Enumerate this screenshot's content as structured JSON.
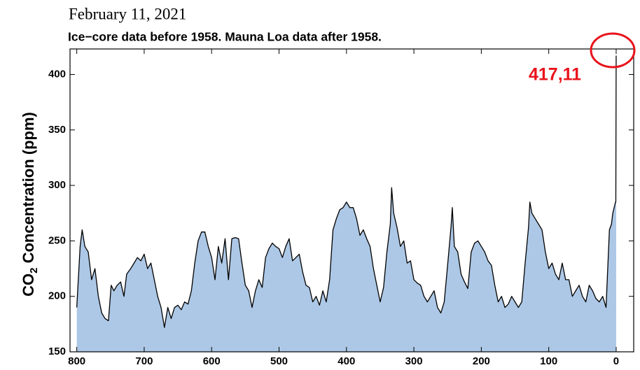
{
  "chart_data": {
    "type": "area",
    "title": "February 11, 2021",
    "subtitle": "Ice−core data before 1958. Mauna Loa data after 1958.",
    "y_label_parts": [
      "CO",
      "2",
      " Concentration (ppm)"
    ],
    "annotation": "417,11",
    "color": "#adc8e6",
    "line_color": "#000000",
    "annotation_color": "#e8141c",
    "xlim": [
      810,
      -26
    ],
    "ylim": [
      150,
      423
    ],
    "xticks": [
      800,
      700,
      600,
      500,
      400,
      300,
      200,
      100,
      0
    ],
    "yticks": [
      150,
      200,
      250,
      300,
      350,
      400
    ],
    "x": [
      800,
      795,
      792,
      788,
      783,
      778,
      773,
      768,
      763,
      758,
      753,
      749,
      745,
      740,
      735,
      730,
      726,
      720,
      715,
      710,
      705,
      700,
      695,
      690,
      685,
      680,
      675,
      670,
      665,
      660,
      655,
      650,
      645,
      640,
      635,
      630,
      625,
      620,
      615,
      610,
      605,
      600,
      595,
      590,
      585,
      580,
      575,
      570,
      565,
      560,
      555,
      550,
      545,
      540,
      535,
      530,
      525,
      520,
      515,
      510,
      505,
      500,
      495,
      490,
      485,
      480,
      475,
      470,
      465,
      460,
      455,
      450,
      445,
      440,
      435,
      430,
      425,
      420,
      415,
      410,
      405,
      400,
      395,
      390,
      385,
      380,
      375,
      370,
      365,
      360,
      355,
      350,
      345,
      340,
      335,
      333,
      330,
      325,
      320,
      315,
      310,
      305,
      300,
      295,
      290,
      285,
      280,
      275,
      270,
      265,
      260,
      255,
      250,
      245,
      243,
      240,
      235,
      230,
      225,
      220,
      215,
      210,
      205,
      200,
      195,
      190,
      185,
      180,
      175,
      170,
      165,
      160,
      155,
      150,
      145,
      140,
      135,
      130,
      128,
      125,
      120,
      115,
      110,
      105,
      100,
      95,
      90,
      85,
      80,
      75,
      70,
      65,
      60,
      55,
      50,
      45,
      40,
      35,
      30,
      25,
      20,
      15,
      10,
      7,
      5,
      3,
      1,
      0.5,
      0
    ],
    "values": [
      190,
      245,
      260,
      245,
      240,
      215,
      225,
      200,
      185,
      180,
      178,
      210,
      205,
      210,
      213,
      200,
      220,
      225,
      230,
      235,
      232,
      238,
      225,
      230,
      215,
      200,
      190,
      172,
      190,
      180,
      190,
      192,
      188,
      195,
      193,
      205,
      230,
      250,
      258,
      258,
      245,
      235,
      215,
      245,
      230,
      252,
      215,
      252,
      253,
      252,
      230,
      210,
      205,
      190,
      205,
      215,
      208,
      235,
      243,
      248,
      245,
      243,
      235,
      245,
      252,
      232,
      235,
      238,
      222,
      210,
      208,
      195,
      200,
      192,
      205,
      195,
      215,
      260,
      270,
      278,
      280,
      285,
      280,
      280,
      270,
      255,
      260,
      252,
      245,
      225,
      210,
      195,
      208,
      240,
      265,
      298,
      275,
      262,
      245,
      250,
      230,
      232,
      215,
      212,
      210,
      200,
      195,
      200,
      205,
      190,
      185,
      195,
      228,
      262,
      280,
      245,
      240,
      220,
      213,
      207,
      240,
      248,
      250,
      245,
      240,
      232,
      228,
      210,
      195,
      200,
      190,
      193,
      200,
      195,
      190,
      195,
      230,
      262,
      285,
      275,
      270,
      265,
      260,
      240,
      225,
      230,
      220,
      215,
      230,
      215,
      215,
      200,
      205,
      210,
      200,
      195,
      210,
      205,
      198,
      195,
      200,
      190,
      260,
      265,
      275,
      280,
      285,
      285,
      417
    ]
  }
}
